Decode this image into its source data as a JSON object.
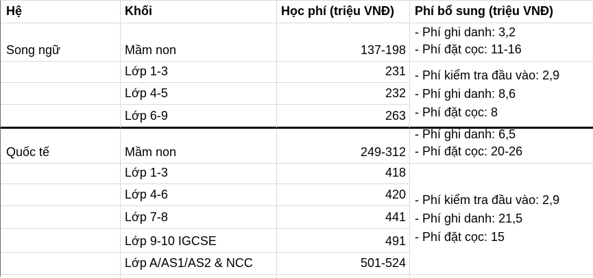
{
  "colors": {
    "text": "#000000",
    "gridline": "#d9d9d9",
    "section_divider": "#000000",
    "left_edge": "#6b6b6b",
    "background": "#ffffff"
  },
  "table": {
    "columns": {
      "he": "Hệ",
      "khoi": "Khối",
      "hoc_phi": "Học phí (triệu VNĐ)",
      "phi_bo_sung": "Phí bổ sung (triệu VNĐ)"
    },
    "sections": [
      {
        "he": "Song ngữ",
        "rows": [
          {
            "khoi": "Mầm non",
            "hoc_phi": "137-198"
          },
          {
            "khoi": "Lớp 1-3",
            "hoc_phi": "231"
          },
          {
            "khoi": "Lớp 4-5",
            "hoc_phi": "232"
          },
          {
            "khoi": "Lớp 6-9",
            "hoc_phi": "263"
          }
        ],
        "phi_bo_sung": {
          "mam_non": [
            "- Phí ghi danh: 3,2",
            "- Phí đặt cọc: 11-16"
          ],
          "cac_lop": [
            "- Phí kiểm tra đầu vào: 2,9",
            "- Phí ghi danh: 8,6",
            "- Phí đặt cọc: 8"
          ]
        }
      },
      {
        "he": "Quốc tế",
        "rows": [
          {
            "khoi": "Mầm non",
            "hoc_phi": "249-312"
          },
          {
            "khoi": "Lớp 1-3",
            "hoc_phi": "418"
          },
          {
            "khoi": "Lớp 4-6",
            "hoc_phi": "420"
          },
          {
            "khoi": "Lớp 7-8",
            "hoc_phi": "441"
          },
          {
            "khoi": "Lớp 9-10 IGCSE",
            "hoc_phi": "491"
          },
          {
            "khoi": "Lớp A/AS1/AS2 & NCC",
            "hoc_phi": "501-524"
          }
        ],
        "phi_bo_sung": {
          "mam_non": [
            "- Phí ghi danh: 6,5",
            "- Phí đặt cọc: 20-26"
          ],
          "cac_lop": [
            "- Phí kiểm tra đầu vào: 2,9",
            "- Phí ghi danh: 21,5",
            "- Phí đặt cọc: 15"
          ]
        }
      }
    ]
  }
}
